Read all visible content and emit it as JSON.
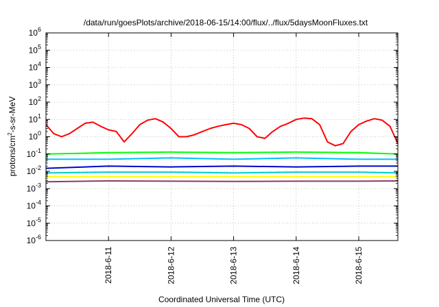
{
  "chart_data": {
    "type": "line",
    "title": "/data/run/goesPlots/archive/2018-06-15/14:00/flux/../flux/5daysMoonFluxes.txt",
    "xlabel": "Coordinated Universal Time (UTC)",
    "ylabel": {
      "prefix": "protons/cm",
      "superscript": "2",
      "suffix": "-s-sr-MeV"
    },
    "y_scale": "log",
    "ylim": [
      1e-06,
      1000000.0
    ],
    "xlim": [
      "2018-06-10T00:00",
      "2018-06-15T15:00"
    ],
    "grid": true,
    "legend": "none",
    "y_ticks": [
      {
        "value": 1e-06,
        "base": "10",
        "exp": "-6"
      },
      {
        "value": 1e-05,
        "base": "10",
        "exp": "-5"
      },
      {
        "value": 0.0001,
        "base": "10",
        "exp": "-4"
      },
      {
        "value": 0.001,
        "base": "10",
        "exp": "-3"
      },
      {
        "value": 0.01,
        "base": "10",
        "exp": "-2"
      },
      {
        "value": 0.1,
        "base": "10",
        "exp": "-1"
      },
      {
        "value": 1,
        "base": "10",
        "exp": "0"
      },
      {
        "value": 10,
        "base": "10",
        "exp": "1"
      },
      {
        "value": 100,
        "base": "10",
        "exp": "2"
      },
      {
        "value": 1000,
        "base": "10",
        "exp": "3"
      },
      {
        "value": 10000,
        "base": "10",
        "exp": "4"
      },
      {
        "value": 100000,
        "base": "10",
        "exp": "5"
      },
      {
        "value": 1000000,
        "base": "10",
        "exp": "6"
      }
    ],
    "x_ticks": [
      {
        "value": "2018-06-11T00:00",
        "label": "2018-6-11"
      },
      {
        "value": "2018-06-12T00:00",
        "label": "2018-6-12"
      },
      {
        "value": "2018-06-13T00:00",
        "label": "2018-6-13"
      },
      {
        "value": "2018-06-14T00:00",
        "label": "2018-6-14"
      },
      {
        "value": "2018-06-15T00:00",
        "label": "2018-6-15"
      }
    ],
    "series": [
      {
        "color": "#ff0000",
        "x": [
          "2018-06-10T00:00",
          "2018-06-10T03:00",
          "2018-06-10T06:00",
          "2018-06-10T09:00",
          "2018-06-10T12:00",
          "2018-06-10T15:00",
          "2018-06-10T18:00",
          "2018-06-10T21:00",
          "2018-06-11T00:00",
          "2018-06-11T03:00",
          "2018-06-11T06:00",
          "2018-06-11T09:00",
          "2018-06-11T12:00",
          "2018-06-11T15:00",
          "2018-06-11T18:00",
          "2018-06-11T21:00",
          "2018-06-12T00:00",
          "2018-06-12T03:00",
          "2018-06-12T06:00",
          "2018-06-12T09:00",
          "2018-06-12T12:00",
          "2018-06-12T15:00",
          "2018-06-12T18:00",
          "2018-06-12T21:00",
          "2018-06-13T00:00",
          "2018-06-13T03:00",
          "2018-06-13T06:00",
          "2018-06-13T09:00",
          "2018-06-13T12:00",
          "2018-06-13T15:00",
          "2018-06-13T18:00",
          "2018-06-13T21:00",
          "2018-06-14T00:00",
          "2018-06-14T03:00",
          "2018-06-14T06:00",
          "2018-06-14T09:00",
          "2018-06-14T12:00",
          "2018-06-14T15:00",
          "2018-06-14T18:00",
          "2018-06-14T21:00",
          "2018-06-15T00:00",
          "2018-06-15T03:00",
          "2018-06-15T06:00",
          "2018-06-15T09:00",
          "2018-06-15T12:00",
          "2018-06-15T15:00"
        ],
        "values": [
          5,
          1.5,
          1.0,
          1.5,
          3,
          6,
          7,
          4,
          2.5,
          2.0,
          0.5,
          1.5,
          5,
          9,
          11,
          7,
          3,
          1.0,
          1.0,
          1.3,
          2,
          3,
          4,
          5,
          6,
          5,
          3,
          1.0,
          0.8,
          2,
          4,
          6,
          10,
          12,
          11,
          5,
          0.5,
          0.3,
          0.4,
          2,
          5,
          8,
          11,
          9,
          4,
          0.4
        ]
      },
      {
        "color": "#00ff00",
        "x": [
          "2018-06-10T00:00",
          "2018-06-11T00:00",
          "2018-06-12T00:00",
          "2018-06-13T00:00",
          "2018-06-14T00:00",
          "2018-06-15T00:00",
          "2018-06-15T15:00"
        ],
        "values": [
          0.1,
          0.12,
          0.13,
          0.12,
          0.13,
          0.12,
          0.1
        ]
      },
      {
        "color": "#00bfff",
        "x": [
          "2018-06-10T00:00",
          "2018-06-11T00:00",
          "2018-06-12T00:00",
          "2018-06-13T00:00",
          "2018-06-14T00:00",
          "2018-06-15T00:00",
          "2018-06-15T15:00"
        ],
        "values": [
          0.05,
          0.05,
          0.06,
          0.05,
          0.06,
          0.05,
          0.05
        ]
      },
      {
        "color": "#0000cd",
        "x": [
          "2018-06-10T00:00",
          "2018-06-11T00:00",
          "2018-06-12T00:00",
          "2018-06-13T00:00",
          "2018-06-14T00:00",
          "2018-06-15T00:00",
          "2018-06-15T15:00"
        ],
        "values": [
          0.015,
          0.02,
          0.018,
          0.02,
          0.018,
          0.02,
          0.02
        ]
      },
      {
        "color": "#00cdcd",
        "x": [
          "2018-06-10T00:00",
          "2018-06-11T00:00",
          "2018-06-12T00:00",
          "2018-06-13T00:00",
          "2018-06-14T00:00",
          "2018-06-15T00:00",
          "2018-06-15T15:00"
        ],
        "values": [
          0.008,
          0.009,
          0.009,
          0.008,
          0.009,
          0.009,
          0.008
        ]
      },
      {
        "color": "#ffff00",
        "x": [
          "2018-06-10T00:00",
          "2018-06-11T00:00",
          "2018-06-12T00:00",
          "2018-06-13T00:00",
          "2018-06-14T00:00",
          "2018-06-15T00:00",
          "2018-06-15T15:00"
        ],
        "values": [
          0.005,
          0.005,
          0.005,
          0.005,
          0.005,
          0.005,
          0.005
        ]
      },
      {
        "color": "#8b3a62",
        "x": [
          "2018-06-10T00:00",
          "2018-06-11T00:00",
          "2018-06-12T00:00",
          "2018-06-13T00:00",
          "2018-06-14T00:00",
          "2018-06-15T00:00",
          "2018-06-15T15:00"
        ],
        "values": [
          0.0025,
          0.0028,
          0.0027,
          0.0026,
          0.0027,
          0.0027,
          0.0028
        ]
      }
    ]
  }
}
